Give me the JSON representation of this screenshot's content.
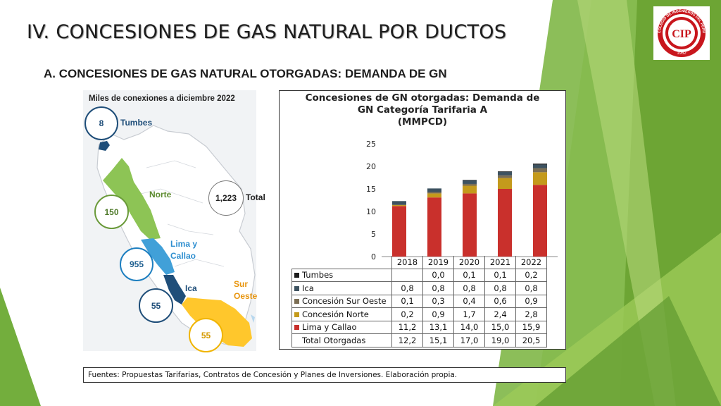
{
  "slide": {
    "title": "IV. CONCESIONES DE GAS NATURAL POR DUCTOS",
    "subtitle": "A.  CONCESIONES DE GAS NATURAL OTORGADAS: DEMANDA DE GN",
    "footer": "Fuentes: Propuestas Tarifarias, Contratos de Concesión y Planes de Inversiones. Elaboración propia."
  },
  "logo": {
    "ring_text": "COLEGIO DE INGENIEROS DEL PERU",
    "year": "1962",
    "initials": "CIP",
    "colors": {
      "ring": "#c8161d",
      "inner": "#ffffff"
    }
  },
  "map": {
    "caption": "Miles de conexiones a  diciembre 2022",
    "regions": [
      {
        "name": "Tumbes",
        "value": "8",
        "color": "#1f4e79"
      },
      {
        "name": "Norte",
        "value": "150",
        "color": "#70ad47"
      },
      {
        "name": "Lima y Callao",
        "value": "955",
        "color": "#41a0d8"
      },
      {
        "name": "Ica",
        "value": "55",
        "color": "#1f4e79"
      },
      {
        "name": "Sur Oeste",
        "value": "55",
        "color": "#ffc000"
      }
    ],
    "total_label": "Total",
    "total_value": "1,223"
  },
  "chart_data": {
    "type": "bar",
    "stacked": true,
    "title": "Concesiones de GN otorgadas: Demanda de GN Categoría Tarifaria A (MMPCD)",
    "title_lines": [
      "Concesiones de GN otorgadas: Demanda de",
      "GN Categoría Tarifaria A",
      "(MMPCD)"
    ],
    "categories": [
      "2018",
      "2019",
      "2020",
      "2021",
      "2022"
    ],
    "ylim": [
      0,
      25
    ],
    "yticks": [
      0,
      5,
      10,
      15,
      20,
      25
    ],
    "grid": false,
    "series": [
      {
        "name": "Lima y Callao",
        "color": "#c9302c",
        "values": [
          11.2,
          13.1,
          14.0,
          15.0,
          15.9
        ],
        "labels": [
          "11,2",
          "13,1",
          "14,0",
          "15,0",
          "15,9"
        ]
      },
      {
        "name": "Concesión Norte",
        "color": "#c49a1c",
        "values": [
          0.2,
          0.9,
          1.7,
          2.4,
          2.8
        ],
        "labels": [
          "0,2",
          "0,9",
          "1,7",
          "2,4",
          "2,8"
        ]
      },
      {
        "name": "Concesión Sur Oeste",
        "color": "#7b6e54",
        "values": [
          0.1,
          0.3,
          0.4,
          0.6,
          0.9
        ],
        "labels": [
          "0,1",
          "0,3",
          "0,4",
          "0,6",
          "0,9"
        ]
      },
      {
        "name": "Ica",
        "color": "#3d5260",
        "values": [
          0.8,
          0.8,
          0.8,
          0.8,
          0.8
        ],
        "labels": [
          "0,8",
          "0,8",
          "0,8",
          "0,8",
          "0,8"
        ]
      },
      {
        "name": "Tumbes",
        "color": "#1b1b1b",
        "values": [
          null,
          0.0,
          0.1,
          0.1,
          0.2
        ],
        "labels": [
          "",
          "0,0",
          "0,1",
          "0,1",
          "0,2"
        ]
      }
    ],
    "table_order": [
      "Tumbes",
      "Ica",
      "Concesión Sur Oeste",
      "Concesión Norte",
      "Lima y Callao"
    ],
    "total": {
      "name": "Total Otorgadas",
      "values": [
        12.2,
        15.1,
        17.0,
        19.0,
        20.5
      ],
      "labels": [
        "12,2",
        "15,1",
        "17,0",
        "19,0",
        "20,5"
      ]
    }
  }
}
